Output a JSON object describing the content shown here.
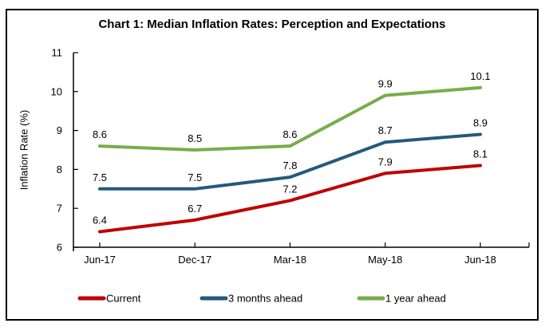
{
  "figure": {
    "background": "#FFFFFF",
    "border_color": "#000000"
  },
  "chart_data": {
    "type": "line",
    "title": "Chart 1: Median Inflation Rates: Perception and Expectations",
    "xlabel": "",
    "ylabel": "Inflation Rate (%)",
    "categories": [
      "Jun-17",
      "Dec-17",
      "Mar-18",
      "May-18",
      "Jun-18"
    ],
    "series": [
      {
        "name": "Current",
        "color": "#C00000",
        "values": [
          6.4,
          6.7,
          7.2,
          7.9,
          8.1
        ]
      },
      {
        "name": "3 months ahead",
        "color": "#235A7C",
        "values": [
          7.5,
          7.5,
          7.8,
          8.7,
          8.9
        ]
      },
      {
        "name": "1 year ahead",
        "color": "#77AD4C",
        "values": [
          8.6,
          8.5,
          8.6,
          9.9,
          10.1
        ]
      }
    ],
    "ylim": [
      6,
      11
    ],
    "ytick_step": 1,
    "yticks": [
      6,
      7,
      8,
      9,
      10,
      11
    ],
    "grid": false,
    "data_labels": true,
    "legend_position": "bottom"
  }
}
